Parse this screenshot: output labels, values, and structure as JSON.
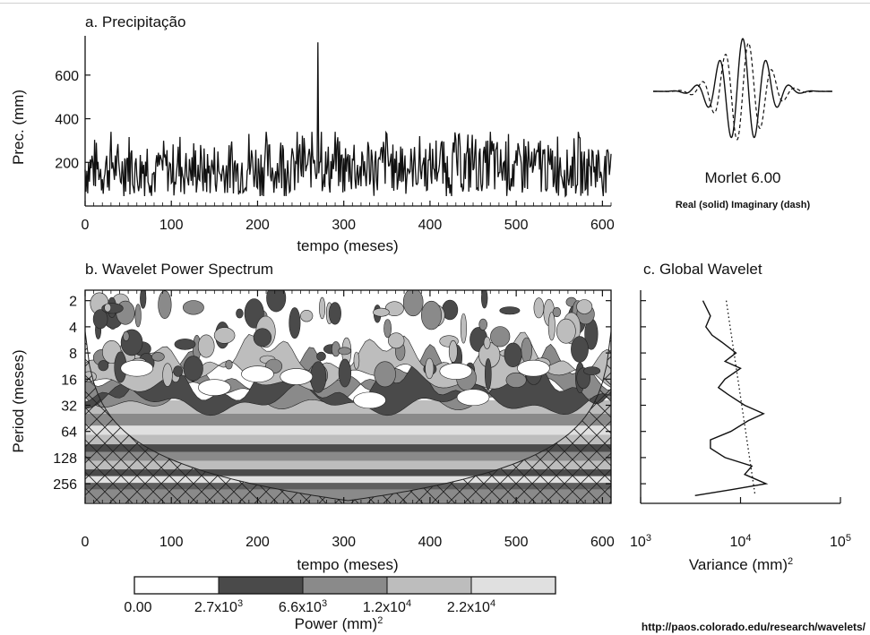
{
  "chart_data": [
    {
      "panel": "a",
      "type": "line",
      "title": "a. Precipitação",
      "xlabel": "tempo (meses)",
      "ylabel": "Prec. (mm)",
      "xlim": [
        0,
        610
      ],
      "ylim": [
        0,
        780
      ],
      "xticks": [
        "0",
        "100",
        "200",
        "300",
        "400",
        "500",
        "600"
      ],
      "yticks": [
        "200",
        "400",
        "600"
      ],
      "grid": false,
      "series": [
        {
          "note": "monthly series 610 points; typical values 60–330 mm, one spike ~750 mm near month 270",
          "x": [
            0,
            10,
            20,
            30,
            40,
            50,
            60,
            70,
            80,
            90,
            100,
            110,
            120,
            130,
            140,
            150,
            160,
            170,
            180,
            190,
            200,
            210,
            220,
            230,
            240,
            250,
            260,
            270,
            280,
            290,
            300,
            310,
            320,
            330,
            340,
            350,
            360,
            370,
            380,
            390,
            400,
            410,
            420,
            430,
            440,
            450,
            460,
            470,
            480,
            490,
            500,
            510,
            520,
            530,
            540,
            550,
            560,
            570,
            580,
            590,
            600,
            610
          ],
          "values": [
            120,
            250,
            90,
            280,
            110,
            300,
            100,
            260,
            80,
            220,
            130,
            240,
            100,
            200,
            90,
            170,
            110,
            210,
            120,
            260,
            150,
            240,
            130,
            320,
            140,
            290,
            150,
            750,
            120,
            280,
            130,
            300,
            110,
            260,
            140,
            320,
            120,
            300,
            130,
            280,
            140,
            310,
            120,
            290,
            150,
            320,
            110,
            300,
            130,
            280,
            120,
            290,
            140,
            270,
            130,
            300,
            120,
            280,
            110,
            260,
            140,
            120
          ]
        }
      ]
    },
    {
      "panel": "morlet",
      "type": "line",
      "title": "Morlet 6.00",
      "subtitle": "Real (solid)  Imaginary (dash)",
      "xlim": [
        -4,
        4
      ],
      "ylim": [
        -1,
        1
      ],
      "series": [
        {
          "style": "solid",
          "function": "exp(-t^2/2)*cos(6t)"
        },
        {
          "style": "dash",
          "function": "exp(-t^2/2)*sin(6t)"
        }
      ]
    },
    {
      "panel": "b",
      "type": "heatmap",
      "title": "b. Wavelet Power Spectrum",
      "xlabel": "tempo (meses)",
      "ylabel": "Period (meses)",
      "xlim": [
        0,
        610
      ],
      "yticks": [
        "2",
        "4",
        "8",
        "16",
        "32",
        "64",
        "128",
        "256"
      ],
      "xticks": [
        "0",
        "100",
        "200",
        "300",
        "400",
        "500",
        "600"
      ],
      "y_scale": "log2",
      "cone_of_influence": true,
      "colorbar": {
        "label": "Power (mm)",
        "label_sup": "2",
        "levels": [
          {
            "label": "0.00",
            "mant": "0.00",
            "exp": ""
          },
          {
            "label": "2.7x10^3",
            "mant": "2.7x10",
            "exp": "3"
          },
          {
            "label": "6.6x10^3",
            "mant": "6.6x10",
            "exp": "3"
          },
          {
            "label": "1.2x10^4",
            "mant": "1.2x10",
            "exp": "4"
          },
          {
            "label": "2.2x10^4",
            "mant": "2.2x10",
            "exp": "4"
          }
        ],
        "colors": [
          "#ffffff",
          "#4a4a4a",
          "#8a8a8a",
          "#bdbdbd",
          "#e0e0e0",
          "#5e5e5e"
        ]
      }
    },
    {
      "panel": "c",
      "type": "line",
      "title": "c. Global Wavelet",
      "xlabel": "Variance (mm)",
      "xlabel_sup": "2",
      "x_scale": "log10",
      "xlim": [
        1000,
        100000
      ],
      "xticks": [
        {
          "mant": "10",
          "exp": "3"
        },
        {
          "mant": "10",
          "exp": "4"
        },
        {
          "mant": "10",
          "exp": "5"
        }
      ],
      "series": [
        {
          "style": "solid",
          "name": "",
          "period": [
            2,
            3,
            4,
            5,
            6,
            8,
            10,
            12,
            16,
            20,
            24,
            32,
            40,
            48,
            64,
            80,
            100,
            128,
            160,
            200,
            256,
            300,
            350
          ],
          "variance": [
            4200,
            5000,
            4500,
            5200,
            6500,
            9000,
            7000,
            10000,
            7000,
            6000,
            7500,
            11000,
            17000,
            12000,
            8000,
            5000,
            5000,
            7000,
            13000,
            11000,
            18000,
            8000,
            3500
          ]
        },
        {
          "style": "dotted",
          "name": "",
          "period": [
            2,
            350
          ],
          "variance": [
            7200,
            14000
          ]
        }
      ]
    }
  ],
  "footer": {
    "url": "http://paos.colorado.edu/research/wavelets/"
  }
}
